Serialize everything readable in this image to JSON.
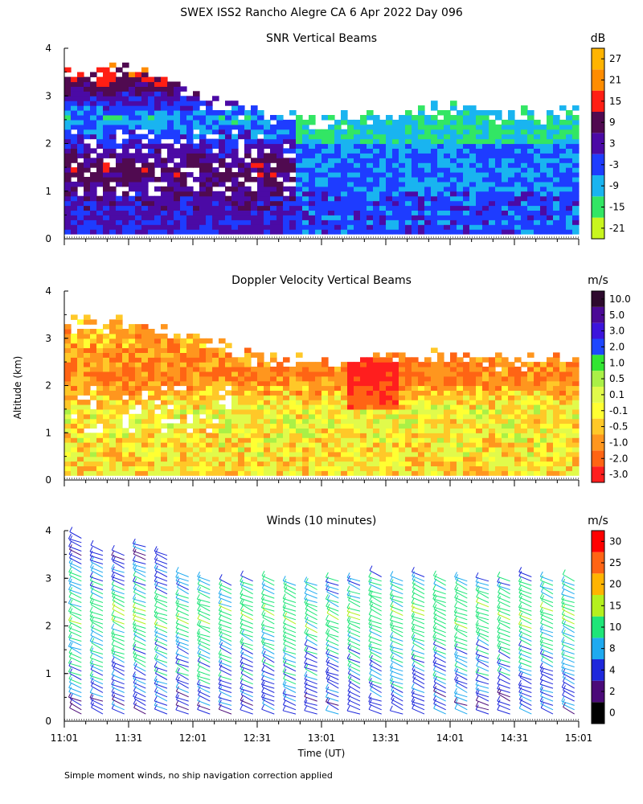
{
  "figure": {
    "title": "SWEX ISS2 Rancho Alegre CA   6 Apr 2022 Day 096",
    "ylabel": "Altitude (km)",
    "xlabel": "Time (UT)",
    "caption": "Simple moment winds, no ship navigation correction applied"
  },
  "colors": {
    "snr": [
      "#c8f51e",
      "#32e664",
      "#19b4f0",
      "#1e3cff",
      "#4b0aa5",
      "#500a50",
      "#ff1e14",
      "#ff8c00",
      "#ffb400"
    ],
    "doppler": [
      "#ff1e1e",
      "#ff6414",
      "#ff961e",
      "#ffc828",
      "#ffff32",
      "#e1fa4b",
      "#aaf046",
      "#32e632",
      "#1e46ff",
      "#3c14dc",
      "#4b0a96",
      "#2d0a2d"
    ],
    "winds": [
      "#000000",
      "#4b0a78",
      "#1e28dc",
      "#1eaaf0",
      "#1ee678",
      "#b4f01e",
      "#ffb400",
      "#ff6414",
      "#ff0000"
    ]
  },
  "chart_data": [
    {
      "type": "heatmap",
      "title": "SNR Vertical Beams",
      "units": "dB",
      "xlim": [
        11.0167,
        15.0167
      ],
      "ylim": [
        0,
        4
      ],
      "yticks": [
        0,
        1,
        2,
        3,
        4
      ],
      "xtick_labels": [],
      "colorbar_ticks": [
        "27",
        "21",
        "15",
        "9",
        "3",
        "-3",
        "-9",
        "-15",
        "-21"
      ],
      "field_profile": [
        {
          "altitude_km": 0.3,
          "value_db": 0
        },
        {
          "altitude_km": 0.8,
          "value_db": 3
        },
        {
          "altitude_km": 1.5,
          "value_db": 9
        },
        {
          "altitude_km": 2.5,
          "value_db": -9
        },
        {
          "altitude_km": 3.5,
          "value_db": 15
        }
      ],
      "data_top_km": [
        {
          "time": "11:01",
          "top": 3.4
        },
        {
          "time": "11:31",
          "top": 3.6
        },
        {
          "time": "12:01",
          "top": 3.0
        },
        {
          "time": "12:31",
          "top": 2.6
        },
        {
          "time": "13:01",
          "top": 2.4
        },
        {
          "time": "13:31",
          "top": 2.6
        },
        {
          "time": "14:01",
          "top": 2.7
        },
        {
          "time": "14:31",
          "top": 2.6
        },
        {
          "time": "15:01",
          "top": 2.6
        }
      ]
    },
    {
      "type": "heatmap",
      "title": "Doppler Velocity Vertical Beams",
      "units": "m/s",
      "xlim": [
        11.0167,
        15.0167
      ],
      "ylim": [
        0,
        4
      ],
      "yticks": [
        0,
        1,
        2,
        3,
        4
      ],
      "xtick_labels": [],
      "colorbar_ticks": [
        "10.0",
        "5.0",
        "3.0",
        "2.0",
        "1.0",
        "0.5",
        "0.1",
        "-0.1",
        "-0.5",
        "-1.0",
        "-2.0",
        "-3.0"
      ],
      "field_profile": [
        {
          "altitude_km": 0.3,
          "value_ms": -0.1
        },
        {
          "altitude_km": 1.5,
          "value_ms": 0.1
        },
        {
          "altitude_km": 2.2,
          "value_ms": -1.0
        },
        {
          "altitude_km": 3.0,
          "value_ms": -0.5
        }
      ],
      "data_top_km": [
        {
          "time": "11:01",
          "top": 3.3
        },
        {
          "time": "11:31",
          "top": 3.3
        },
        {
          "time": "12:01",
          "top": 3.0
        },
        {
          "time": "12:31",
          "top": 2.6
        },
        {
          "time": "13:01",
          "top": 2.5
        },
        {
          "time": "13:31",
          "top": 2.6
        },
        {
          "time": "14:01",
          "top": 2.6
        },
        {
          "time": "14:31",
          "top": 2.5
        },
        {
          "time": "15:01",
          "top": 2.6
        }
      ]
    },
    {
      "type": "scatter",
      "title": "Winds (10 minutes)",
      "units": "m/s",
      "xlim": [
        11.0167,
        15.0167
      ],
      "ylim": [
        0,
        4
      ],
      "yticks": [
        0,
        1,
        2,
        3,
        4
      ],
      "xtick_labels": [
        "11:01",
        "11:31",
        "12:01",
        "12:31",
        "13:01",
        "13:31",
        "14:01",
        "14:31",
        "15:01"
      ],
      "colorbar_ticks": [
        "30",
        "25",
        "20",
        "15",
        "10",
        "8",
        "4",
        "2",
        "0"
      ],
      "profile_times": [
        "11:09",
        "11:19",
        "11:29",
        "11:39",
        "11:49",
        "11:59",
        "12:09",
        "12:19",
        "12:29",
        "12:39",
        "12:49",
        "12:59",
        "13:09",
        "13:19",
        "13:29",
        "13:39",
        "13:49",
        "13:59",
        "14:09",
        "14:19",
        "14:29",
        "14:39",
        "14:49",
        "14:59"
      ],
      "profile_tops_km": [
        3.9,
        3.6,
        3.5,
        3.7,
        3.5,
        3.1,
        3.0,
        2.9,
        3.0,
        3.0,
        2.9,
        2.9,
        3.0,
        3.0,
        3.1,
        3.0,
        3.1,
        3.0,
        3.0,
        3.0,
        3.0,
        3.1,
        3.0,
        3.0
      ],
      "speed_profile": [
        {
          "altitude_km": 0.3,
          "speed_ms": 6
        },
        {
          "altitude_km": 1.2,
          "speed_ms": 9
        },
        {
          "altitude_km": 2.2,
          "speed_ms": 14
        },
        {
          "altitude_km": 3.3,
          "speed_ms": 6
        }
      ]
    }
  ]
}
